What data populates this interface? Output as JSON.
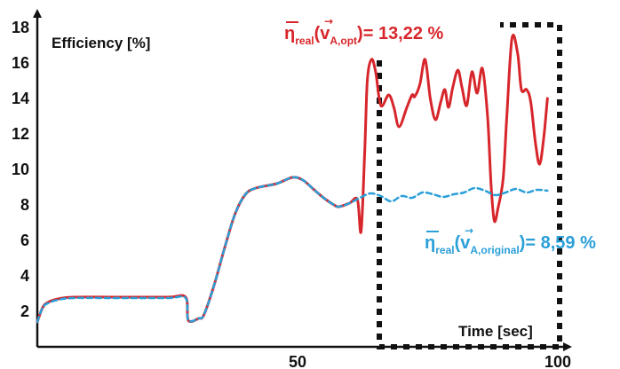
{
  "chart_data": {
    "type": "line",
    "ylabel": "Efficiency [%]",
    "xlabel": "Time [sec]",
    "xlim": [
      0,
      100
    ],
    "ylim": [
      0,
      18
    ],
    "x_ticks": [
      50,
      100
    ],
    "y_ticks": [
      2,
      4,
      6,
      8,
      10,
      12,
      14,
      16,
      18
    ],
    "grid": false,
    "series": [
      {
        "color": "#d7262b",
        "points": [
          [
            0,
            1.4
          ],
          [
            1,
            2.2
          ],
          [
            2,
            2.5
          ],
          [
            4,
            2.7
          ],
          [
            7,
            2.8
          ],
          [
            15,
            2.8
          ],
          [
            25,
            2.8
          ],
          [
            28.5,
            2.8
          ],
          [
            29,
            1.5
          ],
          [
            31,
            1.6
          ],
          [
            32,
            1.8
          ],
          [
            34,
            3.5
          ],
          [
            36,
            5.6
          ],
          [
            38,
            7.5
          ],
          [
            40,
            8.6
          ],
          [
            42,
            8.95
          ],
          [
            46,
            9.2
          ],
          [
            49,
            9.55
          ],
          [
            51,
            9.4
          ],
          [
            53,
            8.9
          ],
          [
            55,
            8.4
          ],
          [
            57,
            8.0
          ],
          [
            58,
            7.9
          ],
          [
            60,
            8.1
          ],
          [
            61.5,
            8.3
          ],
          [
            62.2,
            6.5
          ],
          [
            62.9,
            11.0
          ],
          [
            63.4,
            15.0
          ],
          [
            64.2,
            16.2
          ],
          [
            65,
            15.5
          ],
          [
            66,
            13.6
          ],
          [
            67.5,
            14.2
          ],
          [
            68.5,
            13.5
          ],
          [
            69.5,
            12.4
          ],
          [
            71,
            13.5
          ],
          [
            72,
            14.2
          ],
          [
            72.5,
            14.1
          ],
          [
            73.5,
            14.8
          ],
          [
            74.5,
            16.2
          ],
          [
            75.5,
            14.0
          ],
          [
            76.5,
            12.8
          ],
          [
            77.5,
            13.8
          ],
          [
            78.3,
            14.5
          ],
          [
            79,
            13.5
          ],
          [
            79.8,
            14.6
          ],
          [
            80.8,
            15.6
          ],
          [
            81.6,
            14.6
          ],
          [
            82.5,
            13.6
          ],
          [
            83.5,
            15.5
          ],
          [
            84.5,
            14.3
          ],
          [
            85.5,
            15.7
          ],
          [
            86.5,
            13.0
          ],
          [
            87.2,
            9.0
          ],
          [
            87.8,
            7.1
          ],
          [
            88.5,
            7.8
          ],
          [
            89.5,
            9.5
          ],
          [
            90.2,
            13.0
          ],
          [
            91.2,
            17.4
          ],
          [
            92.3,
            16.5
          ],
          [
            93,
            14.5
          ],
          [
            94,
            14.5
          ],
          [
            94.8,
            13.8
          ],
          [
            95.7,
            11.5
          ],
          [
            96.5,
            10.3
          ],
          [
            97.3,
            11.8
          ],
          [
            98,
            14.0
          ]
        ]
      },
      {
        "color": "#2a9fd8",
        "points": [
          [
            0,
            1.4
          ],
          [
            1,
            2.2
          ],
          [
            2,
            2.45
          ],
          [
            4,
            2.65
          ],
          [
            7,
            2.75
          ],
          [
            15,
            2.75
          ],
          [
            25,
            2.75
          ],
          [
            28.5,
            2.75
          ],
          [
            29,
            1.5
          ],
          [
            31,
            1.6
          ],
          [
            32,
            1.8
          ],
          [
            34,
            3.5
          ],
          [
            36,
            5.6
          ],
          [
            38,
            7.5
          ],
          [
            40,
            8.6
          ],
          [
            42,
            8.95
          ],
          [
            46,
            9.2
          ],
          [
            49,
            9.55
          ],
          [
            51,
            9.4
          ],
          [
            53,
            8.9
          ],
          [
            55,
            8.4
          ],
          [
            57,
            8.0
          ],
          [
            58,
            7.9
          ],
          [
            60,
            8.1
          ],
          [
            62,
            8.4
          ],
          [
            64,
            8.65
          ],
          [
            66,
            8.5
          ],
          [
            68,
            8.2
          ],
          [
            70,
            8.5
          ],
          [
            72,
            8.4
          ],
          [
            74,
            8.7
          ],
          [
            76,
            8.6
          ],
          [
            78,
            8.45
          ],
          [
            80,
            8.6
          ],
          [
            82,
            8.7
          ],
          [
            84,
            8.95
          ],
          [
            86,
            8.8
          ],
          [
            88,
            8.55
          ],
          [
            90,
            8.7
          ],
          [
            92,
            8.9
          ],
          [
            94,
            8.7
          ],
          [
            96,
            8.85
          ],
          [
            98,
            8.8
          ]
        ]
      }
    ],
    "annotations": [
      {
        "color": "#d7262b",
        "symbol": "η",
        "subscript": "real",
        "vector": "v",
        "vector_subscript": "A,opt",
        "value_text": "= 13,22 %"
      },
      {
        "color": "#2a9fd8",
        "symbol": "η",
        "subscript": "real",
        "vector": "v",
        "vector_subscript": "A,original",
        "value_text": "= 8,59 %"
      }
    ]
  }
}
